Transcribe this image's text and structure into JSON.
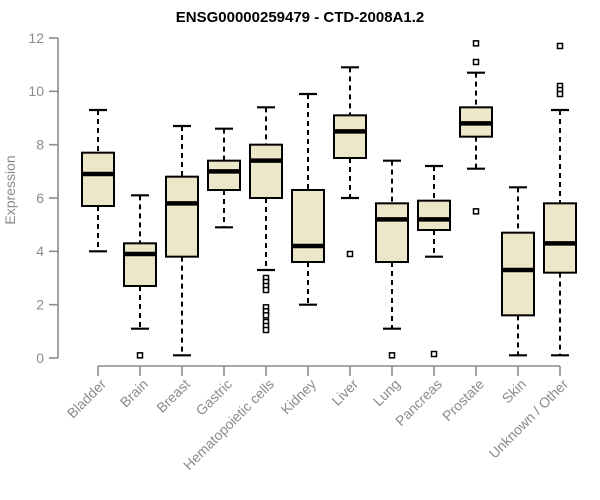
{
  "chart_data": {
    "type": "boxplot",
    "title": "ENSG00000259479 - CTD-2008A1.2",
    "ylabel": "Expression",
    "xlabel": "",
    "ylim": [
      0,
      12
    ],
    "yticks": [
      0,
      2,
      4,
      6,
      8,
      10,
      12
    ],
    "grid": false,
    "legend": null,
    "colors": {
      "background": "#FFFFFF",
      "box_fill": "#EDE7C9",
      "box_border": "#000000",
      "median": "#000000",
      "whisker": "#000000",
      "outlier_fill": "#FFFFFF",
      "axis": "#8C8C8C",
      "tick_label": "#8C8C8C",
      "title": "#000000"
    },
    "categories": [
      "Bladder",
      "Brain",
      "Breast",
      "Gastric",
      "Hematopoietic cells",
      "Kidney",
      "Liver",
      "Lung",
      "Pancreas",
      "Prostate",
      "Skin",
      "Unknown / Other"
    ],
    "boxes": [
      {
        "category": "Bladder",
        "whisker_low": 4.0,
        "q1": 5.7,
        "median": 6.9,
        "q3": 7.7,
        "whisker_high": 9.3,
        "outliers": []
      },
      {
        "category": "Brain",
        "whisker_low": 1.1,
        "q1": 2.7,
        "median": 3.9,
        "q3": 4.3,
        "whisker_high": 6.1,
        "outliers": [
          0.1
        ]
      },
      {
        "category": "Breast",
        "whisker_low": 0.1,
        "q1": 3.8,
        "median": 5.8,
        "q3": 6.8,
        "whisker_high": 8.7,
        "outliers": []
      },
      {
        "category": "Gastric",
        "whisker_low": 4.9,
        "q1": 6.3,
        "median": 7.0,
        "q3": 7.4,
        "whisker_high": 8.6,
        "outliers": []
      },
      {
        "category": "Hematopoietic cells",
        "whisker_low": 3.3,
        "q1": 6.0,
        "median": 7.4,
        "q3": 8.0,
        "whisker_high": 9.4,
        "outliers": [
          3.0,
          2.85,
          2.7,
          2.55,
          1.9,
          1.75,
          1.6,
          1.35,
          1.2,
          1.05
        ]
      },
      {
        "category": "Kidney",
        "whisker_low": 2.0,
        "q1": 3.6,
        "median": 4.2,
        "q3": 6.3,
        "whisker_high": 9.9,
        "outliers": []
      },
      {
        "category": "Liver",
        "whisker_low": 6.0,
        "q1": 7.5,
        "median": 8.5,
        "q3": 9.1,
        "whisker_high": 10.9,
        "outliers": [
          3.9
        ]
      },
      {
        "category": "Lung",
        "whisker_low": 1.1,
        "q1": 3.6,
        "median": 5.2,
        "q3": 5.8,
        "whisker_high": 7.4,
        "outliers": [
          0.1
        ]
      },
      {
        "category": "Pancreas",
        "whisker_low": 3.8,
        "q1": 4.8,
        "median": 5.2,
        "q3": 5.9,
        "whisker_high": 7.2,
        "outliers": [
          0.15
        ]
      },
      {
        "category": "Prostate",
        "whisker_low": 7.1,
        "q1": 8.3,
        "median": 8.8,
        "q3": 9.4,
        "whisker_high": 10.7,
        "outliers": [
          11.8,
          11.1,
          5.5
        ]
      },
      {
        "category": "Skin",
        "whisker_low": 0.1,
        "q1": 1.6,
        "median": 3.3,
        "q3": 4.7,
        "whisker_high": 6.4,
        "outliers": []
      },
      {
        "category": "Unknown / Other",
        "whisker_low": 0.1,
        "q1": 3.2,
        "median": 4.3,
        "q3": 5.8,
        "whisker_high": 9.3,
        "outliers": [
          11.7,
          10.2,
          10.05,
          9.9
        ]
      }
    ]
  }
}
